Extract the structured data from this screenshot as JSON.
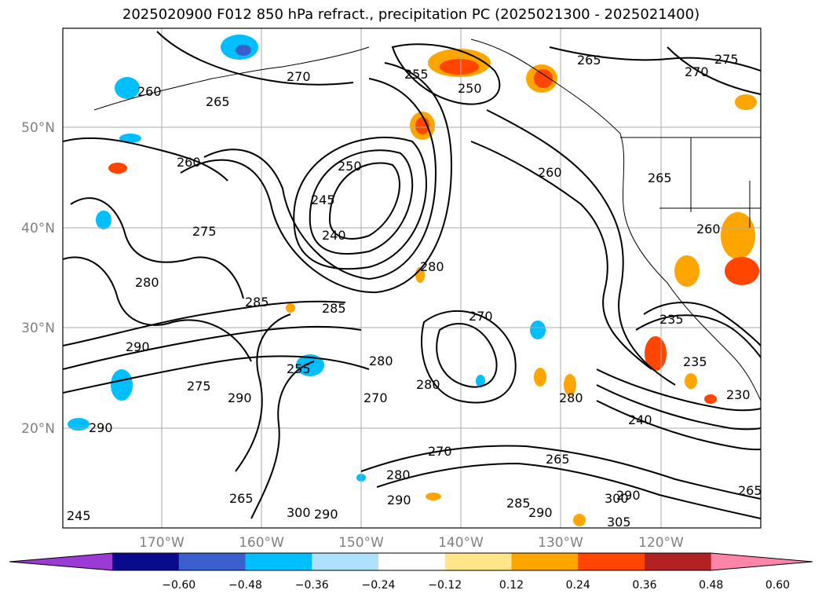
{
  "title": "2025020900 F012 850 hPa refract., precipitation PC (2025021300 - 2025021400)",
  "latitude_labels": [
    "50°N",
    "40°N",
    "30°N",
    "20°N"
  ],
  "longitude_labels": [
    "170°W",
    "160°W",
    "150°W",
    "140°W",
    "130°W",
    "120°W"
  ],
  "colorbar": {
    "ticks": [
      "−0.60",
      "−0.48",
      "−0.36",
      "−0.24",
      "−0.12",
      "0.12",
      "0.24",
      "0.36",
      "0.48",
      "0.60"
    ],
    "colors": [
      "#9c3ad6",
      "#0a0a8c",
      "#3a5fcd",
      "#00bfff",
      "#ade1ff",
      "#ffffff",
      "#ffe68a",
      "#ffa500",
      "#ff4500",
      "#b22222",
      "#ff85a8"
    ]
  },
  "contour_labels": [
    {
      "text": "260"
    },
    {
      "text": "270"
    },
    {
      "text": "265"
    },
    {
      "text": "255"
    },
    {
      "text": "250"
    },
    {
      "text": "265"
    },
    {
      "text": "275"
    },
    {
      "text": "270"
    },
    {
      "text": "260"
    },
    {
      "text": "250"
    },
    {
      "text": "245"
    },
    {
      "text": "240"
    },
    {
      "text": "260"
    },
    {
      "text": "265"
    },
    {
      "text": "260"
    },
    {
      "text": "280"
    },
    {
      "text": "285"
    },
    {
      "text": "285"
    },
    {
      "text": "275"
    },
    {
      "text": "280"
    },
    {
      "text": "270"
    },
    {
      "text": "235"
    },
    {
      "text": "235"
    },
    {
      "text": "290"
    },
    {
      "text": "290"
    },
    {
      "text": "275"
    },
    {
      "text": "255"
    },
    {
      "text": "270"
    },
    {
      "text": "280"
    },
    {
      "text": "280"
    },
    {
      "text": "280"
    },
    {
      "text": "240"
    },
    {
      "text": "230"
    },
    {
      "text": "290"
    },
    {
      "text": "280"
    },
    {
      "text": "270"
    },
    {
      "text": "265"
    },
    {
      "text": "290"
    },
    {
      "text": "265"
    },
    {
      "text": "300"
    },
    {
      "text": "290"
    },
    {
      "text": "285"
    },
    {
      "text": "290"
    },
    {
      "text": "300"
    },
    {
      "text": "290"
    },
    {
      "text": "305"
    },
    {
      "text": "265"
    },
    {
      "text": "245"
    }
  ]
}
